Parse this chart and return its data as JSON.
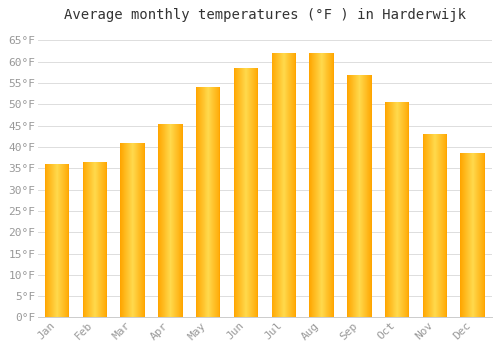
{
  "title": "Average monthly temperatures (°F ) in Harderwijk",
  "months": [
    "Jan",
    "Feb",
    "Mar",
    "Apr",
    "May",
    "Jun",
    "Jul",
    "Aug",
    "Sep",
    "Oct",
    "Nov",
    "Dec"
  ],
  "values": [
    36,
    36.5,
    41,
    45.5,
    54,
    58.5,
    62,
    62,
    57,
    50.5,
    43,
    38.5
  ],
  "bar_color_main": "#FFA800",
  "bar_color_light": "#FFD060",
  "bar_edge_color": "#FFA500",
  "ylim": [
    0,
    68
  ],
  "yticks": [
    0,
    5,
    10,
    15,
    20,
    25,
    30,
    35,
    40,
    45,
    50,
    55,
    60,
    65
  ],
  "ytick_labels": [
    "0°F",
    "5°F",
    "10°F",
    "15°F",
    "20°F",
    "25°F",
    "30°F",
    "35°F",
    "40°F",
    "45°F",
    "50°F",
    "55°F",
    "60°F",
    "65°F"
  ],
  "background_color": "#FFFFFF",
  "grid_color": "#DDDDDD",
  "title_fontsize": 10,
  "tick_fontsize": 8,
  "tick_color": "#999999",
  "font_family": "monospace"
}
